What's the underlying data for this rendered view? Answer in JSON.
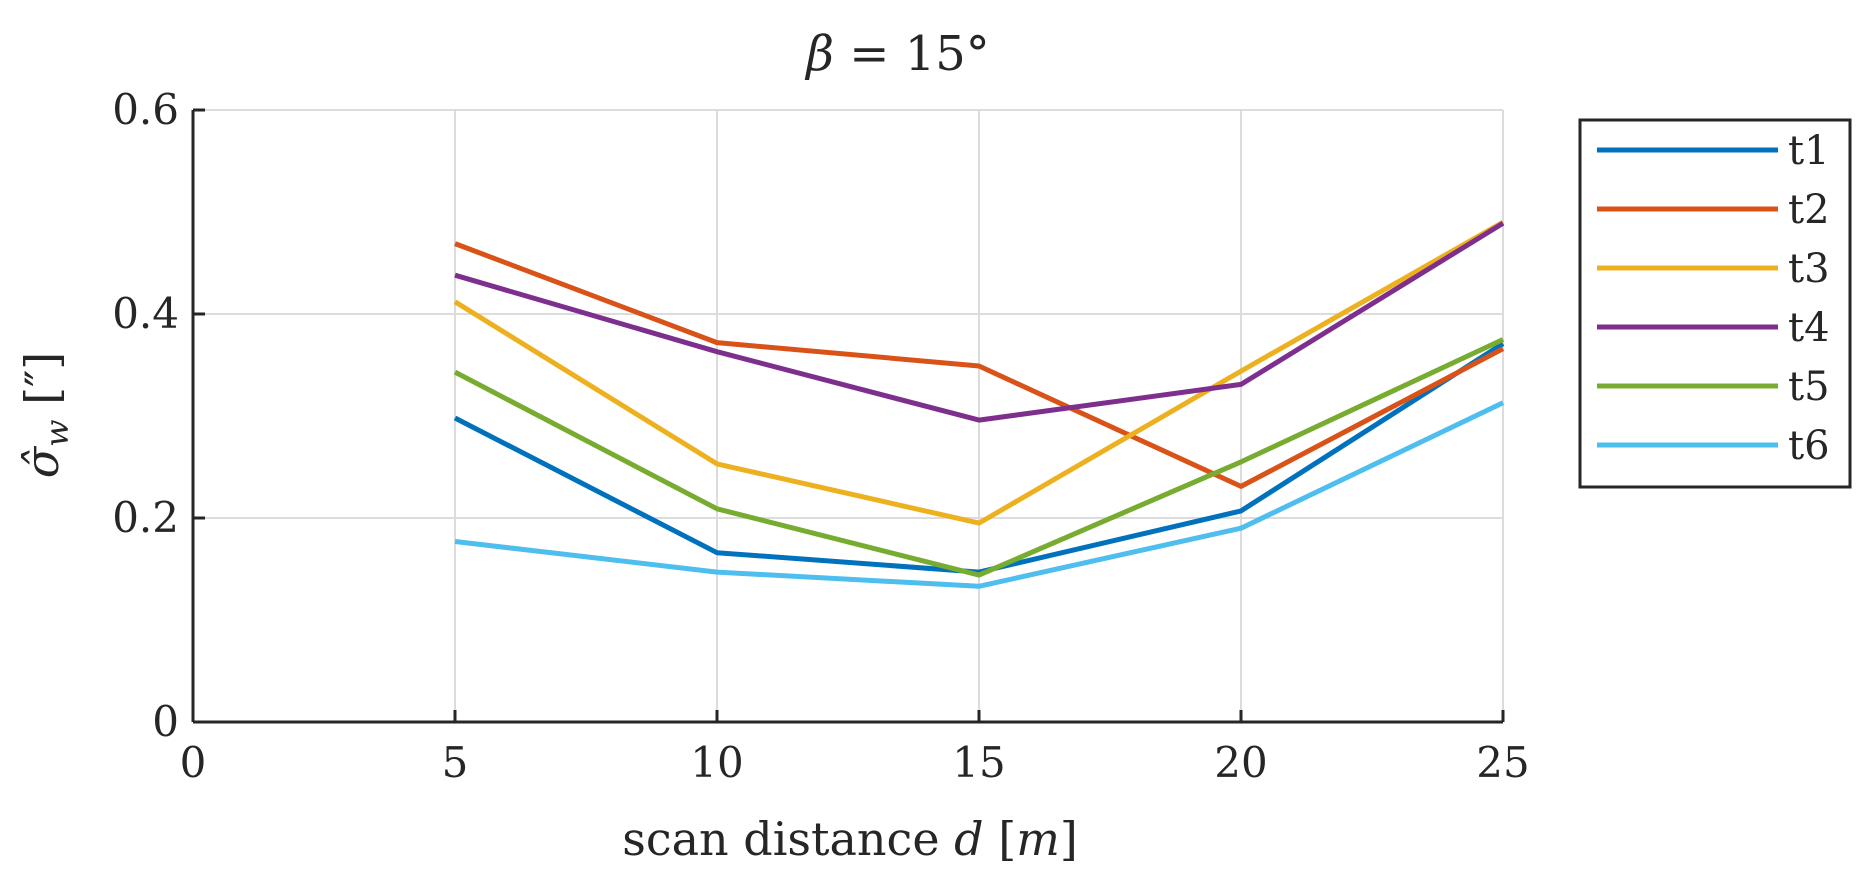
{
  "chart_data": {
    "type": "line",
    "title": {
      "symbol": "β",
      "rest": " = 15°"
    },
    "xlabel": {
      "prefix": "scan distance ",
      "var": "d",
      "unit_open": " [",
      "unit": "m",
      "unit_close": "]"
    },
    "ylabel": {
      "symbol": "σ̂",
      "sub": "w",
      "unit": "  [″]"
    },
    "xlim": [
      0,
      25
    ],
    "ylim": [
      0,
      0.6
    ],
    "xticks": [
      0,
      5,
      10,
      15,
      20,
      25
    ],
    "yticks": [
      0,
      0.2,
      0.4,
      0.6
    ],
    "xtick_labels": [
      "0",
      "5",
      "10",
      "15",
      "20",
      "25"
    ],
    "ytick_labels": [
      "0",
      "0.2",
      "0.4",
      "0.6"
    ],
    "grid": true,
    "legend_position": "outside-top-right",
    "x": [
      5,
      10,
      15,
      20,
      25
    ],
    "series": [
      {
        "name": "t1",
        "color": "#0072BD",
        "values": [
          0.298,
          0.166,
          0.147,
          0.207,
          0.371
        ]
      },
      {
        "name": "t2",
        "color": "#D95319",
        "values": [
          0.469,
          0.372,
          0.349,
          0.231,
          0.366
        ]
      },
      {
        "name": "t3",
        "color": "#EDB120",
        "values": [
          0.412,
          0.253,
          0.195,
          0.344,
          0.49
        ]
      },
      {
        "name": "t4",
        "color": "#7E2F8E",
        "values": [
          0.438,
          0.363,
          0.296,
          0.331,
          0.489
        ]
      },
      {
        "name": "t5",
        "color": "#77AC30",
        "values": [
          0.343,
          0.209,
          0.144,
          0.255,
          0.375
        ]
      },
      {
        "name": "t6",
        "color": "#4DBEEE",
        "values": [
          0.177,
          0.147,
          0.133,
          0.19,
          0.313
        ]
      }
    ]
  }
}
